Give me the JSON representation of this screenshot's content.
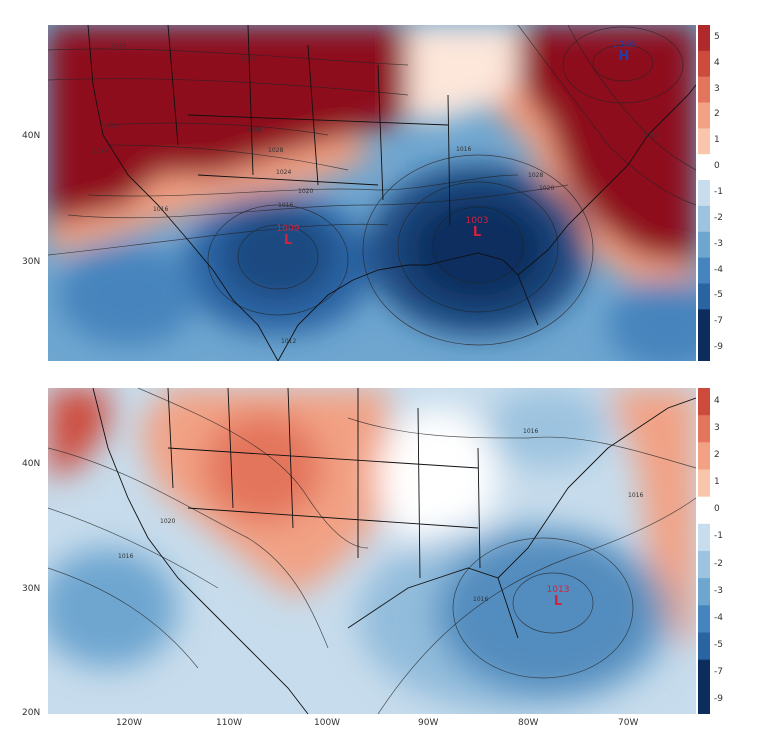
{
  "palette": {
    "warm": [
      "#fde6da",
      "#f9c6ac",
      "#f2a184",
      "#e3755c",
      "#cd4b3c",
      "#b02a2c",
      "#8e0f1f"
    ],
    "cool": [
      "#e8f0f7",
      "#c7dcec",
      "#9cc3df",
      "#6ea6d0",
      "#4684bd",
      "#2b64a3",
      "#1b4880",
      "#0d2d5e"
    ],
    "zero": "#ffffff"
  },
  "top": {
    "colorbar_ticks": [
      "5",
      "4",
      "3",
      "2",
      "1",
      "0",
      "-1",
      "-2",
      "-3",
      "-4",
      "-5",
      "-7",
      "-9"
    ],
    "lat_ticks": [
      "40N",
      "30N"
    ],
    "systems": [
      {
        "letter": "H",
        "value": "1046",
        "color": "#1f3ea8"
      },
      {
        "letter": "L",
        "value": "1009",
        "color": "#d6203c"
      },
      {
        "letter": "L",
        "value": "1003",
        "color": "#d6203c"
      }
    ],
    "isobar_labels": [
      "1036",
      "1036",
      "1032",
      "1028",
      "1028",
      "1024",
      "1024",
      "1020",
      "1020",
      "1016",
      "1016",
      "1016",
      "1012",
      "1028",
      "1016"
    ]
  },
  "bottom": {
    "colorbar_ticks": [
      "4",
      "3",
      "2",
      "1",
      "0",
      "-1",
      "-2",
      "-3",
      "-4",
      "-5",
      "-7",
      "-9"
    ],
    "lat_ticks": [
      "40N",
      "30N",
      "20N"
    ],
    "lon_ticks": [
      "120W",
      "110W",
      "100W",
      "90W",
      "80W",
      "70W"
    ],
    "systems": [
      {
        "letter": "L",
        "value": "1013",
        "color": "#d6203c"
      }
    ],
    "isobar_labels": [
      "1016",
      "1020",
      "1016",
      "1016",
      "1016"
    ]
  }
}
